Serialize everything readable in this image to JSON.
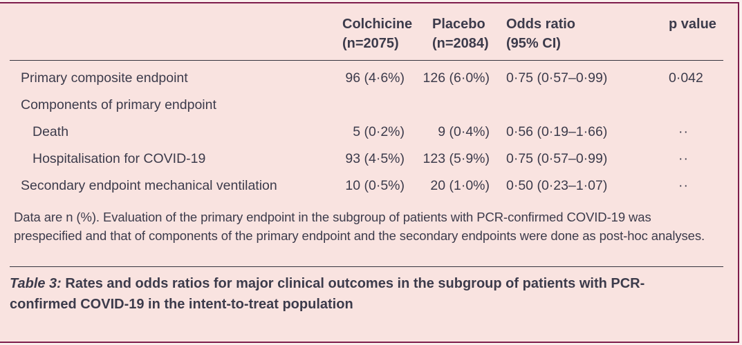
{
  "colors": {
    "background": "#f9e3e0",
    "border": "#7d1c4b",
    "text": "#3c3b4b",
    "rule": "#33323d",
    "page": "#fbf0ee"
  },
  "table": {
    "header": {
      "colchicine": {
        "line1": "Colchicine",
        "line2": "(n=2075)"
      },
      "placebo": {
        "line1": "Placebo",
        "line2": "(n=2084)"
      },
      "odds_ratio": {
        "line1": "Odds ratio",
        "line2": "(95% CI)"
      },
      "p_value": {
        "line1": "p value",
        "line2": ""
      }
    },
    "rows": [
      {
        "label": "Primary composite endpoint",
        "colchicine": "96 (4·6%)",
        "placebo": "126 (6·0%)",
        "odds_ratio": "0·75 (0·57–0·99)",
        "p_value": "0·042"
      },
      {
        "label": "Components of primary endpoint",
        "colchicine": "",
        "placebo": "",
        "odds_ratio": "",
        "p_value": ""
      },
      {
        "label": "Death",
        "colchicine": "5 (0·2%)",
        "placebo": "9 (0·4%)",
        "odds_ratio": "0·56 (0·19–1·66)",
        "p_value": "··"
      },
      {
        "label": "Hospitalisation for COVID-19",
        "colchicine": "93 (4·5%)",
        "placebo": "123 (5·9%)",
        "odds_ratio": "0·75 (0·57–0·99)",
        "p_value": "··"
      },
      {
        "label": "Secondary endpoint mechanical ventilation",
        "colchicine": "10 (0·5%)",
        "placebo": "20 (1·0%)",
        "odds_ratio": "0·50 (0·23–1·07)",
        "p_value": "··"
      }
    ],
    "footnote": "Data are n (%). Evaluation of the primary endpoint in the subgroup of patients with PCR-confirmed COVID-19 was prespecified and that of components of the primary endpoint and the secondary endpoints were done as post-hoc analyses.",
    "caption": {
      "label": "Table 3:",
      "text": " Rates and odds ratios for major clinical outcomes in the subgroup of patients with PCR-confirmed COVID-19 in the intent-to-treat population"
    }
  }
}
